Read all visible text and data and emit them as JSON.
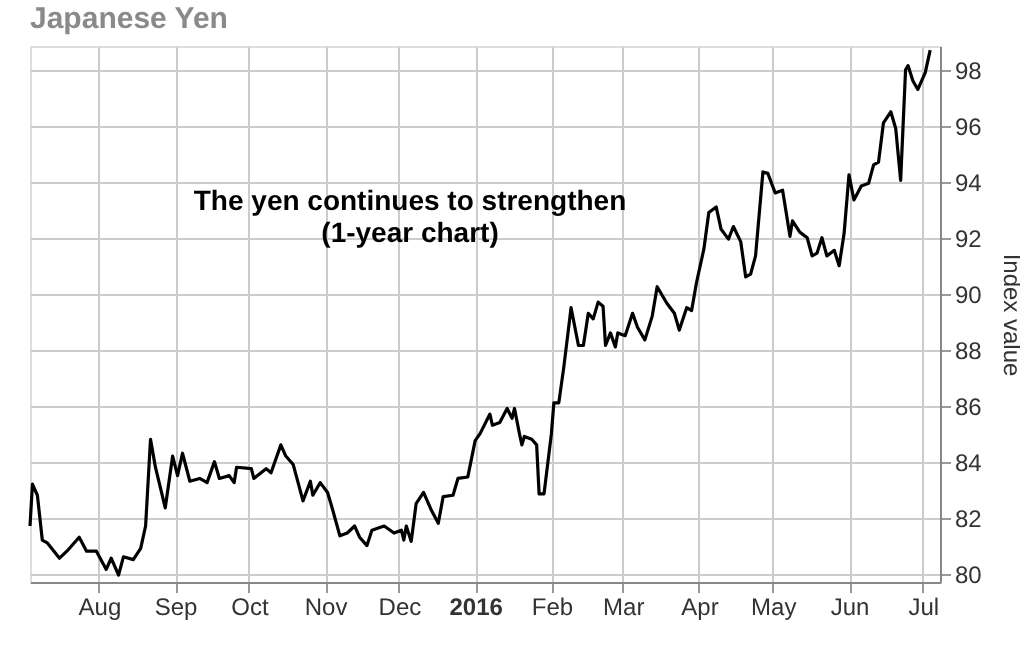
{
  "chart_data": {
    "type": "line",
    "title": "Japanese Yen",
    "ylabel": "Index value",
    "annotations": [
      "The yen continues to strengthen\n(1-year chart)"
    ],
    "xlim": [
      "2015-07-04",
      "2016-07-08"
    ],
    "xticks": [
      {
        "value": "2015-08-01",
        "label": "Aug"
      },
      {
        "value": "2015-09-01",
        "label": "Sep"
      },
      {
        "value": "2015-10-01",
        "label": "Oct"
      },
      {
        "value": "2015-11-01",
        "label": "Nov"
      },
      {
        "value": "2015-12-01",
        "label": "Dec"
      },
      {
        "value": "2016-01-01",
        "label": "2016"
      },
      {
        "value": "2016-02-01",
        "label": "Feb"
      },
      {
        "value": "2016-03-01",
        "label": "Mar"
      },
      {
        "value": "2016-04-01",
        "label": "Apr"
      },
      {
        "value": "2016-05-01",
        "label": "May"
      },
      {
        "value": "2016-06-01",
        "label": "Jun"
      },
      {
        "value": "2016-07-01",
        "label": "Jul"
      }
    ],
    "ylim": [
      79.7,
      98.85
    ],
    "yticks": [
      80,
      82,
      84,
      86,
      88,
      90,
      92,
      94,
      96,
      98
    ],
    "grid": true,
    "legend": false,
    "marker": "none",
    "line_style": "solid",
    "series": [
      {
        "color": "#000000",
        "x": [
          "2015-07-04",
          "2015-07-05",
          "2015-07-07",
          "2015-07-09",
          "2015-07-11",
          "2015-07-16",
          "2015-07-19",
          "2015-07-24",
          "2015-07-27",
          "2015-07-31",
          "2015-08-04",
          "2015-08-06",
          "2015-08-09",
          "2015-08-11",
          "2015-08-15",
          "2015-08-18",
          "2015-08-20",
          "2015-08-22",
          "2015-08-24",
          "2015-08-28",
          "2015-08-31",
          "2015-09-02",
          "2015-09-04",
          "2015-09-07",
          "2015-09-11",
          "2015-09-14",
          "2015-09-17",
          "2015-09-19",
          "2015-09-23",
          "2015-09-25",
          "2015-09-26",
          "2015-10-02",
          "2015-10-03",
          "2015-10-08",
          "2015-10-10",
          "2015-10-14",
          "2015-10-16",
          "2015-10-19",
          "2015-10-23",
          "2015-10-26",
          "2015-10-27",
          "2015-10-30",
          "2015-11-02",
          "2015-11-04",
          "2015-11-07",
          "2015-11-10",
          "2015-11-13",
          "2015-11-15",
          "2015-11-18",
          "2015-11-20",
          "2015-11-25",
          "2015-11-29",
          "2015-12-02",
          "2015-12-03",
          "2015-12-04",
          "2015-12-06",
          "2015-12-08",
          "2015-12-11",
          "2015-12-14",
          "2015-12-17",
          "2015-12-19",
          "2015-12-23",
          "2015-12-25",
          "2015-12-29",
          "2016-01-01",
          "2016-01-03",
          "2016-01-07",
          "2016-01-08",
          "2016-01-11",
          "2016-01-14",
          "2016-01-16",
          "2016-01-17",
          "2016-01-19",
          "2016-01-20",
          "2016-01-21",
          "2016-01-24",
          "2016-01-26",
          "2016-01-27",
          "2016-01-29",
          "2016-02-01",
          "2016-02-02",
          "2016-02-04",
          "2016-02-06",
          "2016-02-09",
          "2016-02-12",
          "2016-02-14",
          "2016-02-16",
          "2016-02-18",
          "2016-02-20",
          "2016-02-22",
          "2016-02-23",
          "2016-02-25",
          "2016-02-27",
          "2016-02-28",
          "2016-03-02",
          "2016-03-05",
          "2016-03-07",
          "2016-03-10",
          "2016-03-13",
          "2016-03-15",
          "2016-03-19",
          "2016-03-22",
          "2016-03-24",
          "2016-03-27",
          "2016-03-29",
          "2016-03-31",
          "2016-04-03",
          "2016-04-05",
          "2016-04-08",
          "2016-04-10",
          "2016-04-13",
          "2016-04-15",
          "2016-04-18",
          "2016-04-20",
          "2016-04-22",
          "2016-04-24",
          "2016-04-27",
          "2016-04-29",
          "2016-05-02",
          "2016-05-05",
          "2016-05-08",
          "2016-05-09",
          "2016-05-12",
          "2016-05-15",
          "2016-05-17",
          "2016-05-19",
          "2016-05-21",
          "2016-05-23",
          "2016-05-26",
          "2016-05-28",
          "2016-05-30",
          "2016-06-01",
          "2016-06-03",
          "2016-06-06",
          "2016-06-09",
          "2016-06-11",
          "2016-06-13",
          "2016-06-15",
          "2016-06-18",
          "2016-06-20",
          "2016-06-22",
          "2016-06-24",
          "2016-06-25",
          "2016-06-27",
          "2016-06-29",
          "2016-07-02",
          "2016-07-04"
        ],
        "values": [
          81.7,
          83.2,
          82.8,
          81.2,
          81.1,
          80.55,
          80.8,
          81.3,
          80.8,
          80.8,
          80.15,
          80.55,
          79.95,
          80.6,
          80.5,
          80.9,
          81.7,
          84.8,
          83.8,
          82.35,
          84.2,
          83.5,
          84.3,
          83.3,
          83.4,
          83.25,
          84.0,
          83.4,
          83.5,
          83.25,
          83.8,
          83.75,
          83.4,
          83.75,
          83.6,
          84.6,
          84.2,
          83.9,
          82.6,
          83.3,
          82.8,
          83.25,
          82.9,
          82.3,
          81.35,
          81.45,
          81.7,
          81.3,
          81.0,
          81.55,
          81.7,
          81.45,
          81.55,
          81.2,
          81.7,
          81.15,
          82.5,
          82.9,
          82.3,
          81.8,
          82.75,
          82.8,
          83.4,
          83.45,
          84.75,
          85.0,
          85.7,
          85.3,
          85.4,
          85.9,
          85.55,
          85.9,
          85.0,
          84.6,
          84.9,
          84.8,
          84.6,
          82.85,
          82.85,
          85.0,
          86.1,
          86.1,
          87.35,
          89.5,
          88.15,
          88.15,
          89.3,
          89.1,
          89.7,
          89.55,
          88.15,
          88.6,
          88.1,
          88.6,
          88.5,
          89.3,
          88.8,
          88.35,
          89.2,
          90.25,
          89.65,
          89.3,
          88.7,
          89.5,
          89.4,
          90.4,
          91.6,
          92.9,
          93.1,
          92.3,
          91.95,
          92.4,
          91.85,
          90.6,
          90.7,
          91.35,
          94.35,
          94.3,
          93.6,
          93.7,
          92.05,
          92.6,
          92.2,
          92.0,
          91.35,
          91.45,
          92.0,
          91.35,
          91.55,
          91.0,
          92.15,
          94.25,
          93.35,
          93.85,
          93.95,
          94.6,
          94.7,
          96.1,
          96.5,
          95.9,
          94.05,
          98.0,
          98.15,
          97.6,
          97.3,
          97.9,
          98.7
        ]
      }
    ]
  }
}
